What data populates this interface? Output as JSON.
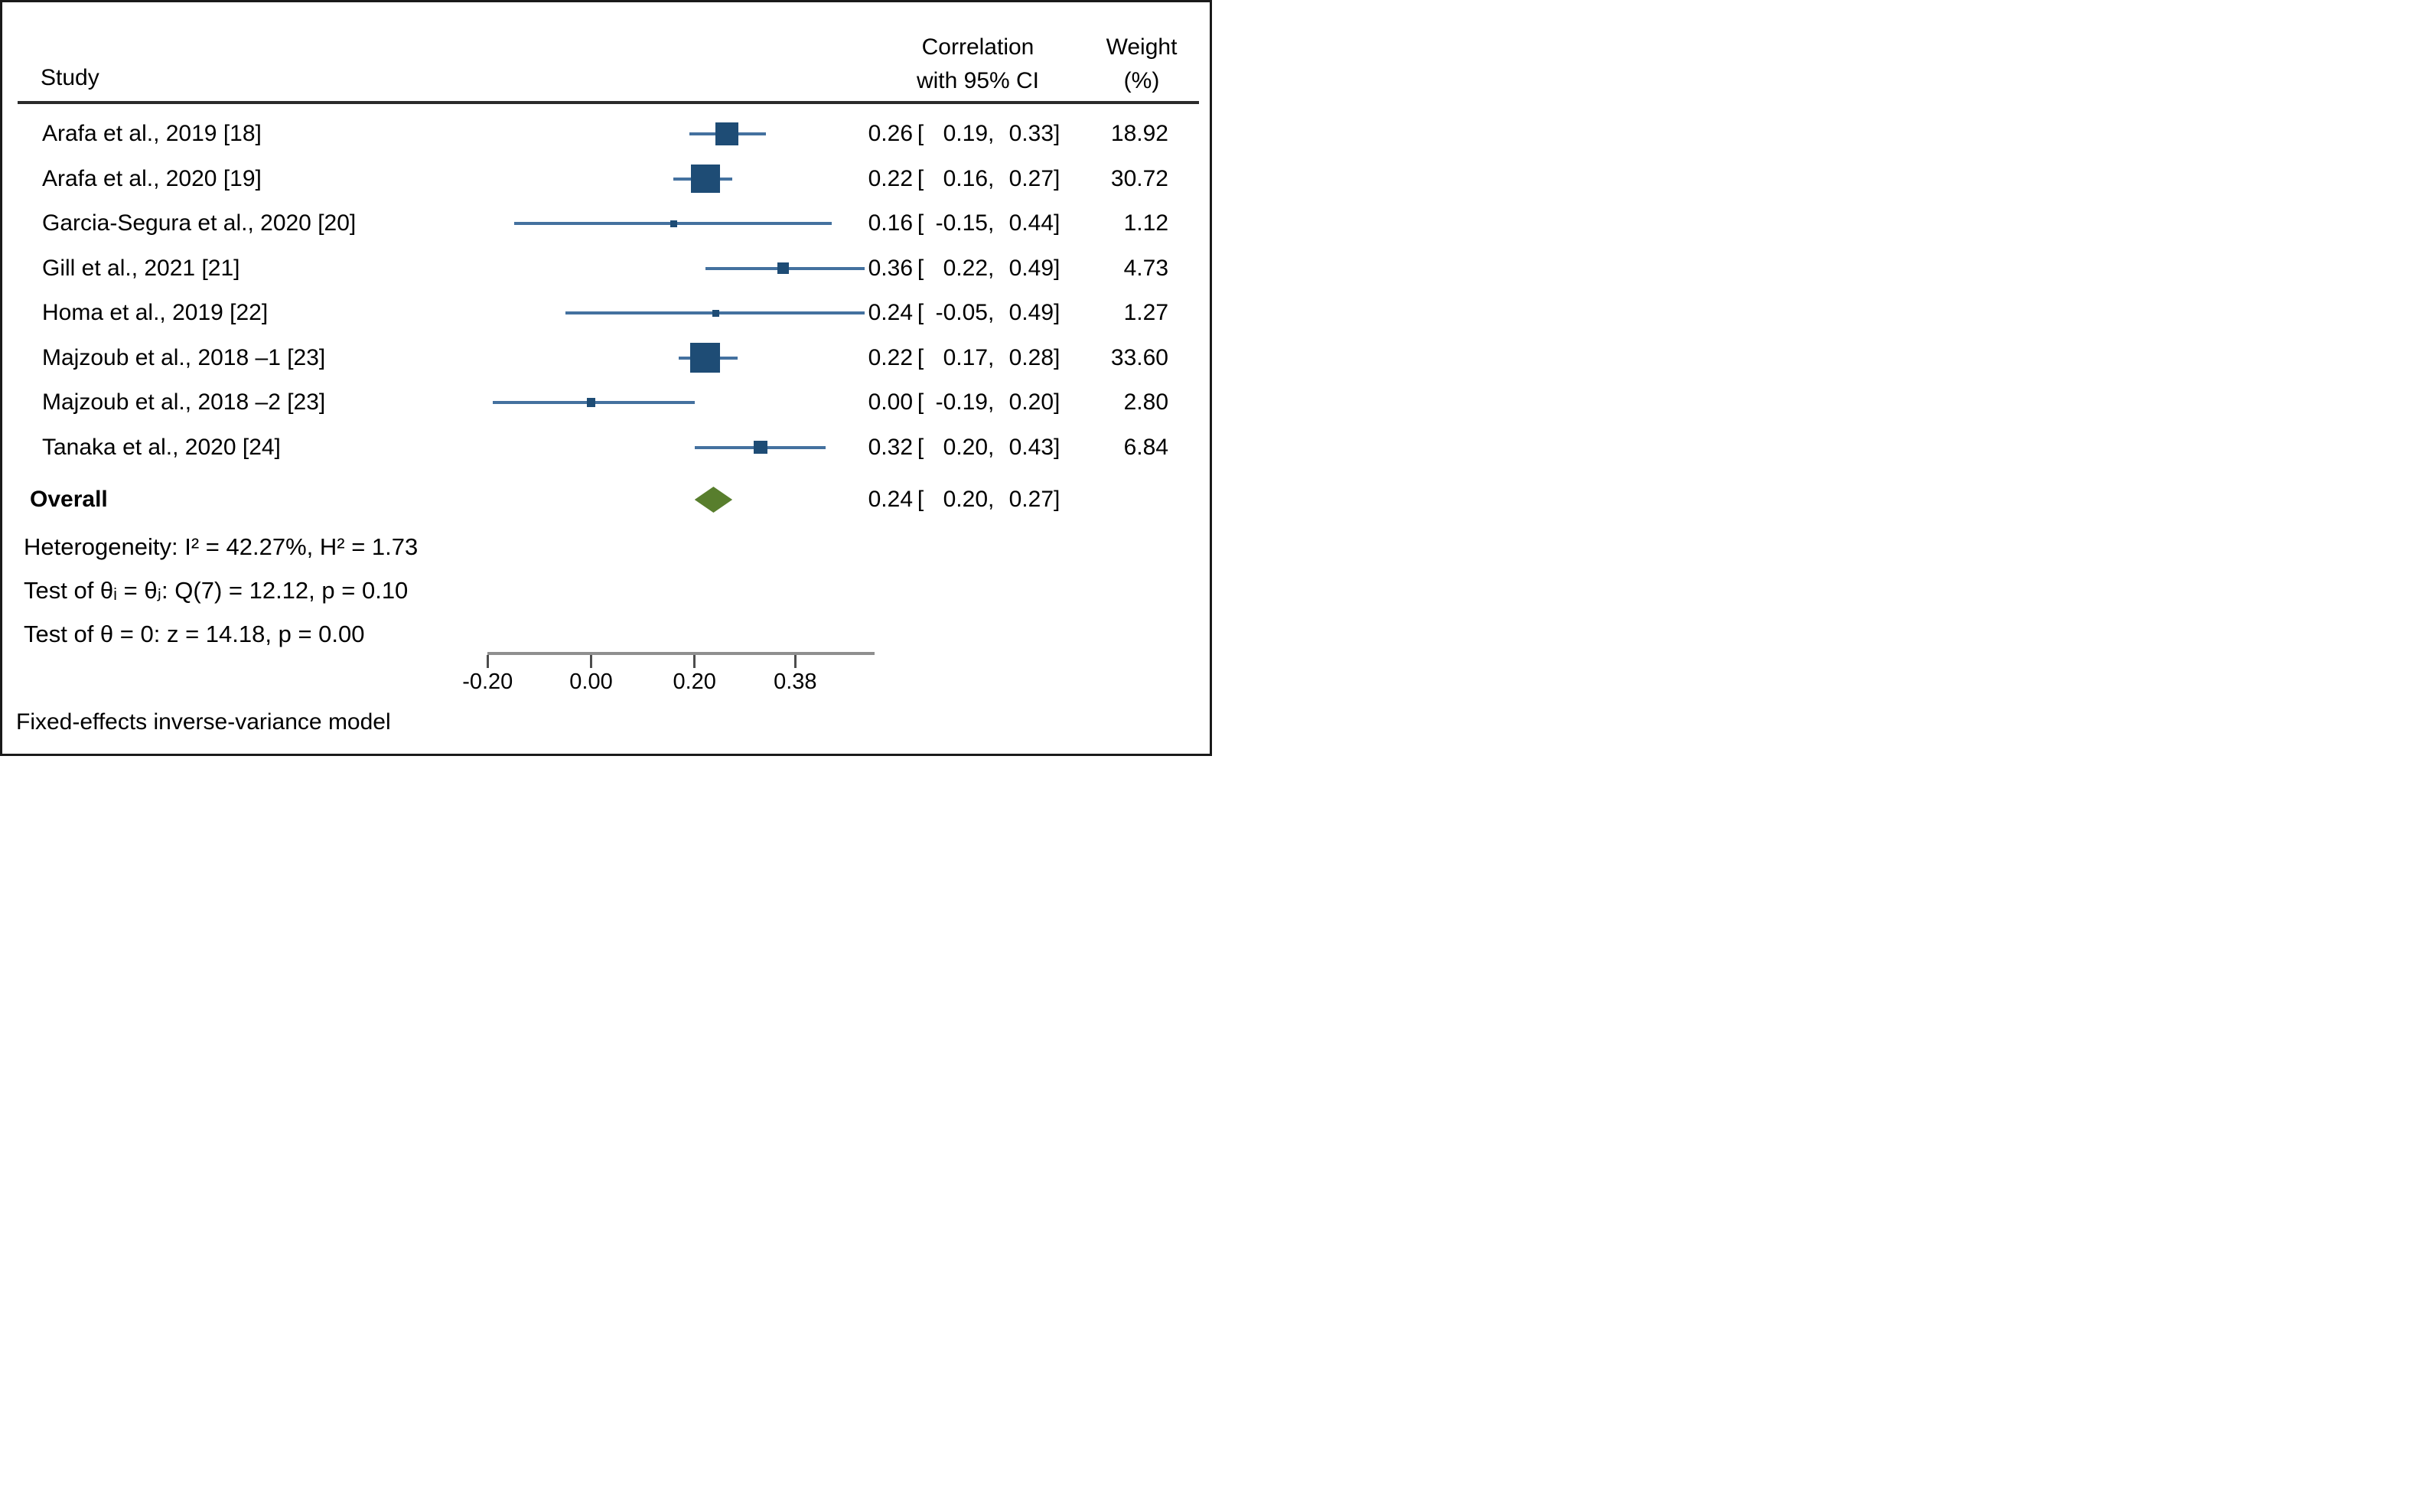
{
  "header": {
    "study": "Study",
    "effect_line1": "Correlation",
    "effect_line2": "with 95% CI",
    "weight_line1": "Weight",
    "weight_line2": "(%)"
  },
  "punctuation": {
    "open_bracket": "[",
    "comma": ",",
    "close_bracket": "]"
  },
  "chart_data": {
    "type": "forest",
    "effect_measure": "Correlation",
    "x_axis": {
      "scale": "fisher-z (equal spacing of atanh-transformed correlations)",
      "ticks": [
        {
          "value": -0.2,
          "label": "-0.20"
        },
        {
          "value": 0.0,
          "label": "0.00"
        },
        {
          "value": 0.2,
          "label": "0.20"
        },
        {
          "value": 0.38,
          "label": "0.38"
        }
      ]
    },
    "studies": [
      {
        "label": "Arafa et al., 2019 [18]",
        "est": 0.26,
        "lo": 0.19,
        "hi": 0.33,
        "weight": 18.92,
        "est_text": "0.26",
        "lo_text": "0.19",
        "hi_text": "0.33",
        "weight_text": "18.92"
      },
      {
        "label": "Arafa et al., 2020 [19]",
        "est": 0.22,
        "lo": 0.16,
        "hi": 0.27,
        "weight": 30.72,
        "est_text": "0.22",
        "lo_text": "0.16",
        "hi_text": "0.27",
        "weight_text": "30.72"
      },
      {
        "label": "Garcia-Segura et al., 2020 [20]",
        "est": 0.16,
        "lo": -0.15,
        "hi": 0.44,
        "weight": 1.12,
        "est_text": "0.16",
        "lo_text": "-0.15",
        "hi_text": "0.44",
        "weight_text": "1.12"
      },
      {
        "label": "Gill et al., 2021 [21]",
        "est": 0.36,
        "lo": 0.22,
        "hi": 0.49,
        "weight": 4.73,
        "est_text": "0.36",
        "lo_text": "0.22",
        "hi_text": "0.49",
        "weight_text": "4.73"
      },
      {
        "label": "Homa et al., 2019 [22]",
        "est": 0.24,
        "lo": -0.05,
        "hi": 0.49,
        "weight": 1.27,
        "est_text": "0.24",
        "lo_text": "-0.05",
        "hi_text": "0.49",
        "weight_text": "1.27"
      },
      {
        "label": "Majzoub et al., 2018 –1 [23]",
        "est": 0.22,
        "lo": 0.17,
        "hi": 0.28,
        "weight": 33.6,
        "est_text": "0.22",
        "lo_text": "0.17",
        "hi_text": "0.28",
        "weight_text": "33.60"
      },
      {
        "label": "Majzoub et al., 2018 –2 [23]",
        "est": 0.0,
        "lo": -0.19,
        "hi": 0.2,
        "weight": 2.8,
        "est_text": "0.00",
        "lo_text": "-0.19",
        "hi_text": "0.20",
        "weight_text": "2.80"
      },
      {
        "label": "Tanaka et al., 2020 [24]",
        "est": 0.32,
        "lo": 0.2,
        "hi": 0.43,
        "weight": 6.84,
        "est_text": "0.32",
        "lo_text": "0.20",
        "hi_text": "0.43",
        "weight_text": "6.84"
      }
    ],
    "overall": {
      "label": "Overall",
      "est": 0.24,
      "lo": 0.2,
      "hi": 0.27,
      "est_text": "0.24",
      "lo_text": "0.20",
      "hi_text": "0.27"
    },
    "stats": {
      "heterogeneity": "Heterogeneity: I² = 42.27%, H² = 1.73",
      "test_theta_ij": "Test of θᵢ = θⱼ: Q(7) = 12.12, p = 0.10",
      "test_theta_zero": "Test of θ = 0: z = 14.18, p = 0.00"
    },
    "footnote": "Fixed-effects inverse-variance model"
  },
  "colors": {
    "marker": "#1e4c75",
    "ci_line": "#44719f",
    "diamond": "#587e2d",
    "axis": "#8f8f8f",
    "tick": "#4d4d4d",
    "rule": "#2b2b2b",
    "text": "#000000",
    "border": "#1a1a1a"
  }
}
